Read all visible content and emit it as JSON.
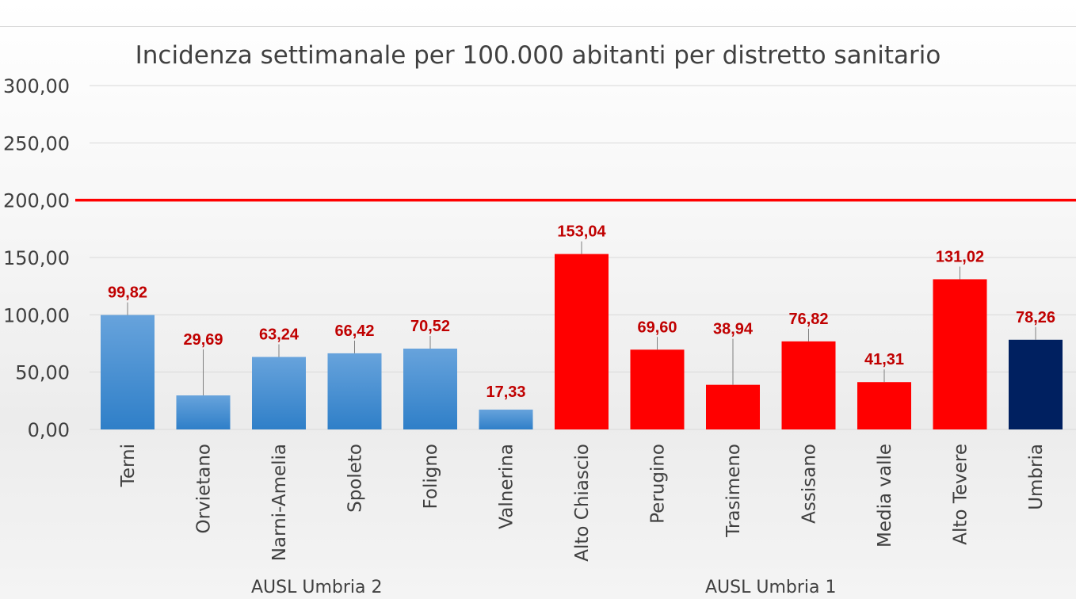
{
  "chart_data": {
    "type": "bar",
    "title": "Incidenza settimanale per 100.000 abitanti per distretto sanitario",
    "categories": [
      "Terni",
      "Orvietano",
      "Narni-Amelia",
      "Spoleto",
      "Foligno",
      "Valnerina",
      "Alto Chiascio",
      "Perugino",
      "Trasimeno",
      "Assisano",
      "Media valle",
      "Alto Tevere",
      "Umbria"
    ],
    "values": [
      99.82,
      29.69,
      63.24,
      66.42,
      70.52,
      17.33,
      153.04,
      69.6,
      38.94,
      76.82,
      41.31,
      131.02,
      78.26
    ],
    "value_labels": [
      "99,82",
      "29,69",
      "63,24",
      "66,42",
      "70,52",
      "17,33",
      "153,04",
      "69,60",
      "38,94",
      "76,82",
      "41,31",
      "131,02",
      "78,26"
    ],
    "groups": [
      {
        "label": "AUSL Umbria 2",
        "categories": [
          "Terni",
          "Orvietano",
          "Narni-Amelia",
          "Spoleto",
          "Foligno",
          "Valnerina"
        ]
      },
      {
        "label": "AUSL Umbria 1",
        "categories": [
          "Alto Chiascio",
          "Perugino",
          "Trasimeno",
          "Assisano",
          "Media valle",
          "Alto Tevere"
        ]
      }
    ],
    "bar_colors": [
      "#5b9bd5",
      "#5b9bd5",
      "#5b9bd5",
      "#5b9bd5",
      "#5b9bd5",
      "#5b9bd5",
      "#ff0000",
      "#ff0000",
      "#ff0000",
      "#ff0000",
      "#ff0000",
      "#ff0000",
      "#002060"
    ],
    "y_ticks": [
      "0,00",
      "50,00",
      "100,00",
      "150,00",
      "200,00",
      "250,00",
      "300,00"
    ],
    "ylim": [
      0,
      300
    ],
    "threshold": {
      "value": 200,
      "color": "#ff0000"
    },
    "label_color": "#c00000",
    "grid": true,
    "legend": "none"
  }
}
